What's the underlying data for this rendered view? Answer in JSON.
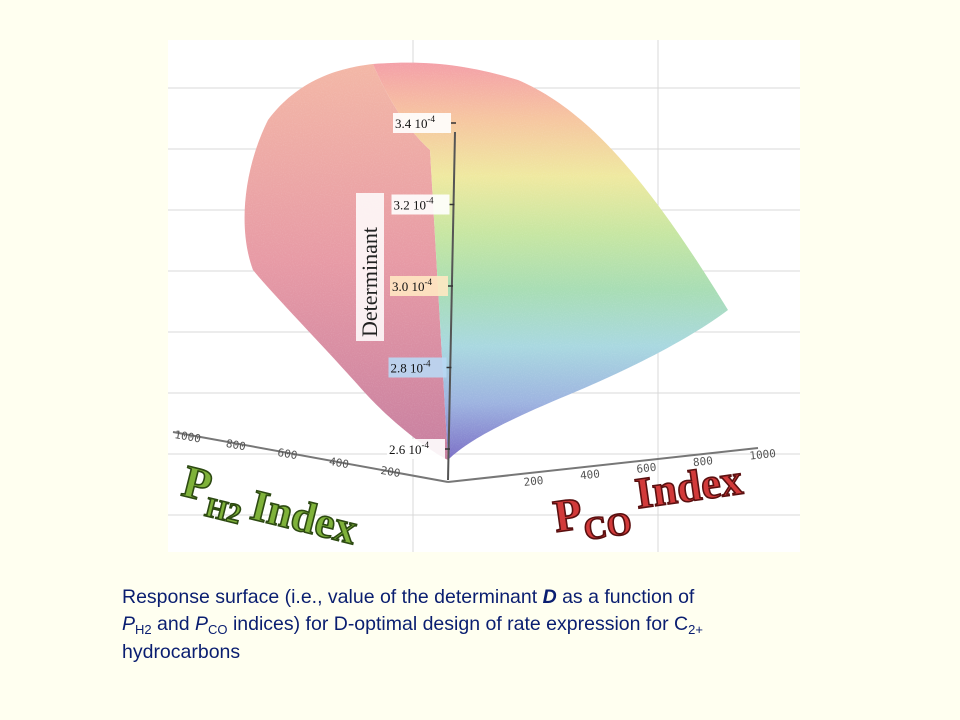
{
  "chart_data": {
    "type": "surface3d",
    "z_axis": {
      "label": "Determinant",
      "tick_labels": [
        "2.6 10",
        "2.8 10",
        "3.0 10",
        "3.2 10",
        "3.4 10"
      ],
      "tick_exponent": "-4",
      "ticks": [
        0.00026,
        0.00028,
        0.0003,
        0.00032,
        0.00034
      ]
    },
    "x_axis": {
      "label_prefix": "P",
      "label_sub": "H2",
      "label_suffix": "Index",
      "tick_labels": [
        "1000",
        "800",
        "600",
        "400",
        "200"
      ]
    },
    "y_axis": {
      "label_prefix": "P",
      "label_sub": "CO",
      "label_suffix": "Index",
      "tick_labels": [
        "200",
        "400",
        "600",
        "800",
        "1000"
      ]
    },
    "surface_color_bands": [
      "#7B6FC6",
      "#9DB3E0",
      "#A9D8E0",
      "#A8DDB4",
      "#C7E6A2",
      "#EFE9A0",
      "#F6C6A0",
      "#F4A0A8"
    ]
  },
  "caption": {
    "line1_pre": "Response surface (i.e., value of the determinant ",
    "line1_D": "D",
    "line1_post": " as a function of",
    "line2_P1": "P",
    "line2_sub1": "H2",
    "line2_mid": " and ",
    "line2_P2": "P",
    "line2_sub2": "CO",
    "line2_post": " indices) for D-optimal design of rate expression for C",
    "line2_sub3": "2+",
    "line3": "hydrocarbons"
  }
}
